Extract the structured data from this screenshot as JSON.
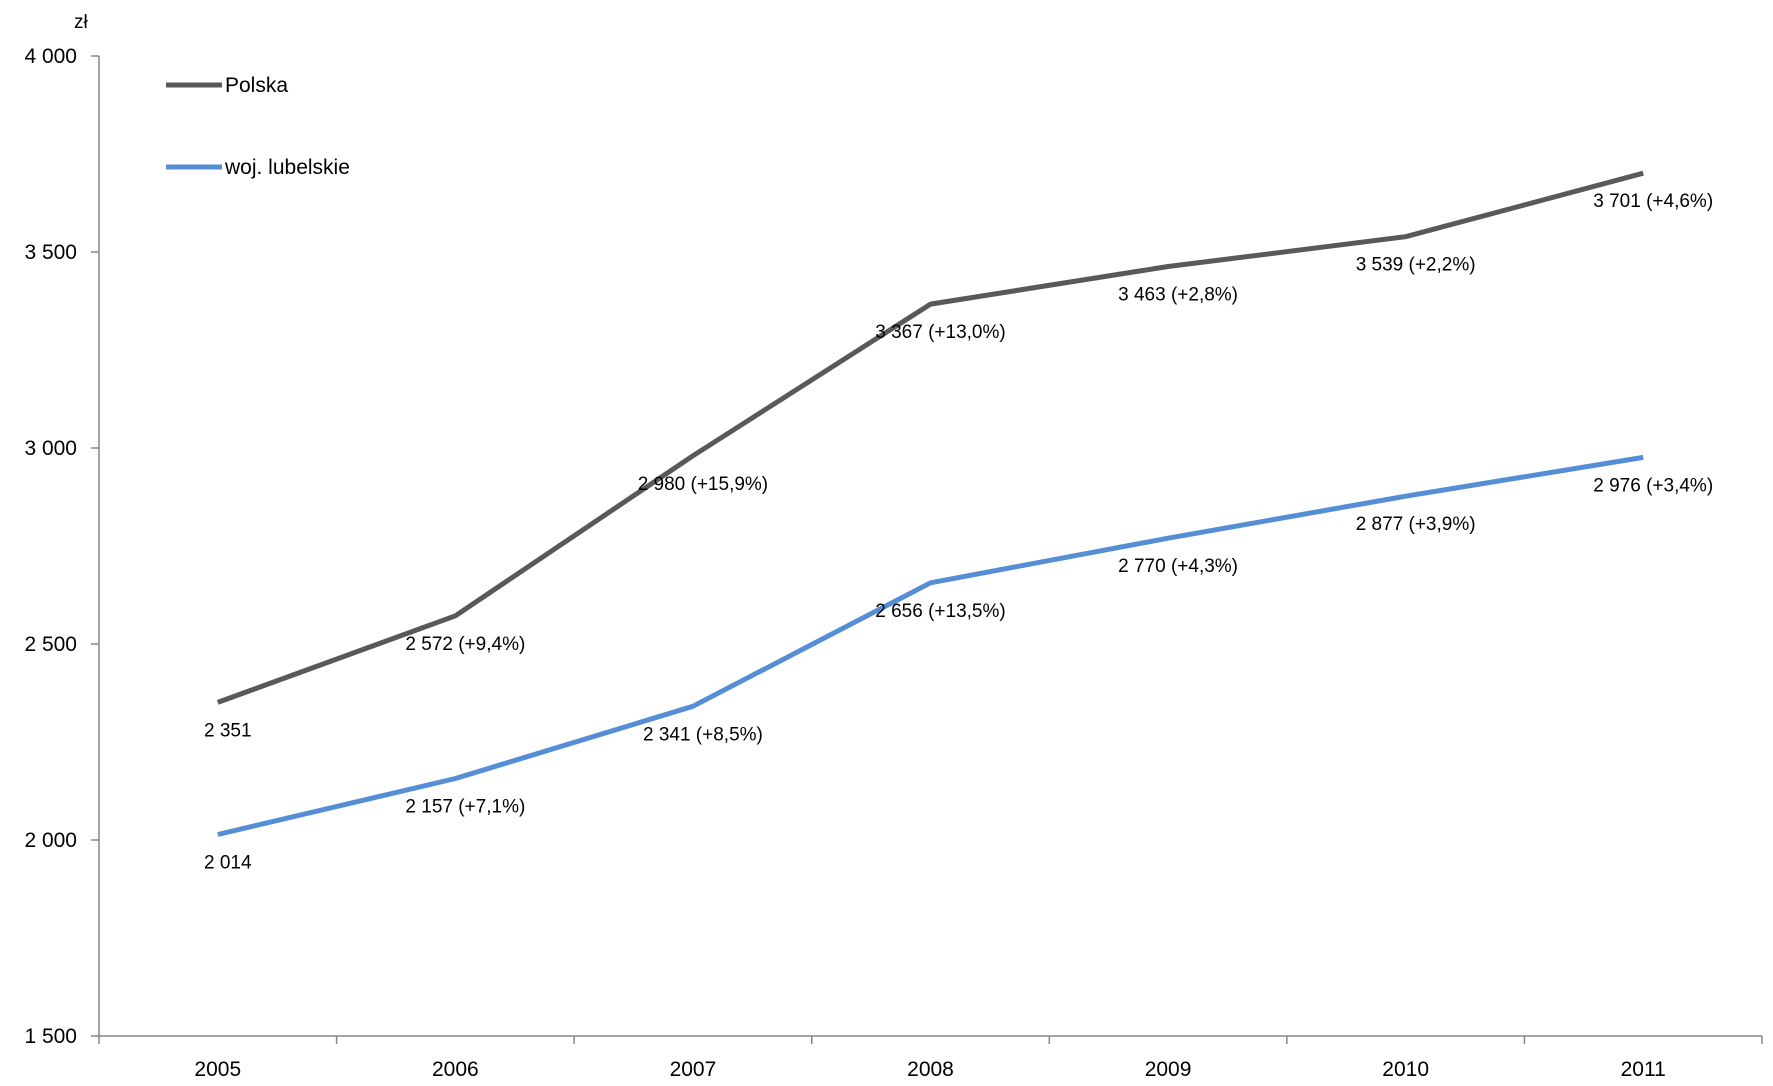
{
  "chart_data": {
    "type": "line",
    "unit": "zł",
    "categories": [
      "2005",
      "2006",
      "2007",
      "2008",
      "2009",
      "2010",
      "2011"
    ],
    "ylim": [
      1500,
      4000
    ],
    "yticks": [
      1500,
      2000,
      2500,
      3000,
      3500,
      4000
    ],
    "ytick_labels": [
      "1 500",
      "2 000",
      "2 500",
      "3 000",
      "3 500",
      "4 000"
    ],
    "grid": false,
    "legend_position": "top-left",
    "series": [
      {
        "name": "Polska",
        "color": "#595959",
        "values": [
          2351,
          2572,
          2980,
          3367,
          3463,
          3539,
          3701
        ],
        "labels": [
          "2 351",
          "2 572 (+9,4%)",
          "2 980 (+15,9%)",
          "3 367 (+13,0%)",
          "3 463 (+2,8%)",
          "3 539 (+2,2%)",
          "3 701 (+4,6%)"
        ]
      },
      {
        "name": "woj. lubelskie",
        "color": "#558ED5",
        "values": [
          2014,
          2157,
          2341,
          2656,
          2770,
          2877,
          2976
        ],
        "labels": [
          "2 014",
          "2 157 (+7,1%)",
          "2 341 (+8,5%)",
          "2 656 (+13,5%)",
          "2 770 (+4,3%)",
          "2 877 (+3,9%)",
          "2 976 (+3,4%)"
        ]
      }
    ]
  }
}
